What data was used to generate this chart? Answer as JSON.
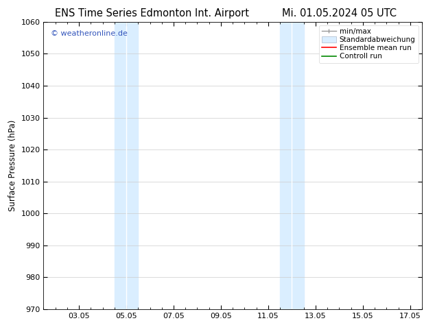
{
  "title_left": "ENS Time Series Edmonton Int. Airport",
  "title_right": "Mi. 01.05.2024 05 UTC",
  "ylabel": "Surface Pressure (hPa)",
  "ylim": [
    970,
    1060
  ],
  "yticks": [
    970,
    980,
    990,
    1000,
    1010,
    1020,
    1030,
    1040,
    1050,
    1060
  ],
  "xlim": [
    1.5,
    17.5
  ],
  "xtick_labels": [
    "03.05",
    "05.05",
    "07.05",
    "09.05",
    "11.05",
    "13.05",
    "15.05",
    "17.05"
  ],
  "xtick_positions": [
    3,
    5,
    7,
    9,
    11,
    13,
    15,
    17
  ],
  "watermark": "© weatheronline.de",
  "watermark_color": "#3355bb",
  "background_color": "#ffffff",
  "shaded_bands": [
    {
      "x_start": 4.5,
      "x_end": 5.0,
      "color": "#daeeff"
    },
    {
      "x_start": 5.0,
      "x_end": 5.5,
      "color": "#daeeff"
    },
    {
      "x_start": 11.5,
      "x_end": 12.0,
      "color": "#daeeff"
    },
    {
      "x_start": 12.0,
      "x_end": 12.5,
      "color": "#daeeff"
    }
  ],
  "shaded_combined": [
    {
      "x_start": 4.5,
      "x_end": 5.5,
      "color": "#daeeff"
    },
    {
      "x_start": 11.5,
      "x_end": 12.5,
      "color": "#daeeff"
    }
  ],
  "grid_color": "#cccccc",
  "title_fontsize": 10.5,
  "axis_fontsize": 8.5,
  "tick_fontsize": 8,
  "legend_fontsize": 7.5
}
